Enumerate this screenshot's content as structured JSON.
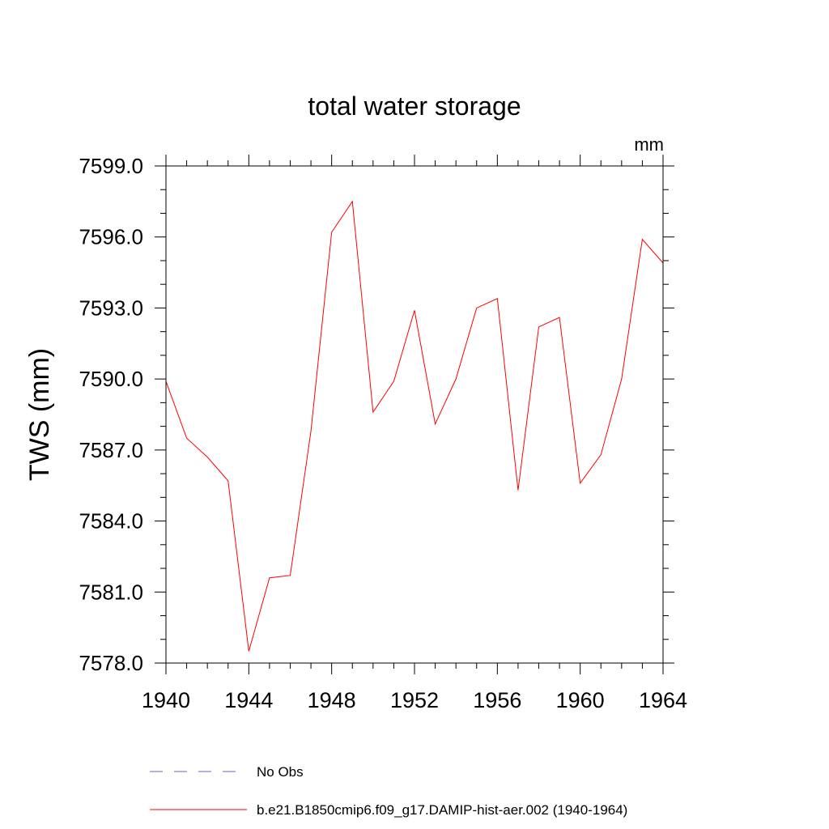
{
  "chart_data": {
    "type": "line",
    "title": "total water storage",
    "units_label": "mm",
    "xlabel": "",
    "ylabel": "TWS  (mm)",
    "xlim": [
      1940,
      1964
    ],
    "ylim": [
      7578.0,
      7599.0
    ],
    "x_ticks": [
      1940,
      1944,
      1948,
      1952,
      1956,
      1960,
      1964
    ],
    "x_tick_labels": [
      "1940",
      "1944",
      "1948",
      "1952",
      "1956",
      "1960",
      "1964"
    ],
    "y_ticks": [
      7578.0,
      7581.0,
      7584.0,
      7587.0,
      7590.0,
      7593.0,
      7596.0,
      7599.0
    ],
    "y_tick_labels": [
      "7578.0",
      "7581.0",
      "7584.0",
      "7587.0",
      "7590.0",
      "7593.0",
      "7596.0",
      "7599.0"
    ],
    "grid": false,
    "legend_placement": "bottom",
    "x": [
      1940,
      1941,
      1942,
      1943,
      1944,
      1945,
      1946,
      1947,
      1948,
      1949,
      1950,
      1951,
      1952,
      1953,
      1954,
      1955,
      1956,
      1957,
      1958,
      1959,
      1960,
      1961,
      1962,
      1963,
      1964
    ],
    "series": [
      {
        "name": "b.e21.B1850cmip6.f09_g17.DAMIP-hist-aer.002 (1940-1964)",
        "color": "#ff0000",
        "style": "solid",
        "values": [
          7589.9,
          7587.5,
          7586.7,
          7585.7,
          7578.5,
          7581.6,
          7581.7,
          7587.8,
          7596.2,
          7597.5,
          7588.6,
          7589.9,
          7592.9,
          7588.1,
          7590.0,
          7593.0,
          7593.4,
          7585.3,
          7592.2,
          7592.6,
          7585.6,
          7586.8,
          7590.0,
          7595.9,
          7594.9
        ]
      }
    ],
    "legend": [
      {
        "label": "No Obs",
        "color": "#6666cc",
        "style": "dashed"
      },
      {
        "label": "b.e21.B1850cmip6.f09_g17.DAMIP-hist-aer.002 (1940-1964)",
        "color": "#ff0000",
        "style": "solid"
      }
    ]
  }
}
